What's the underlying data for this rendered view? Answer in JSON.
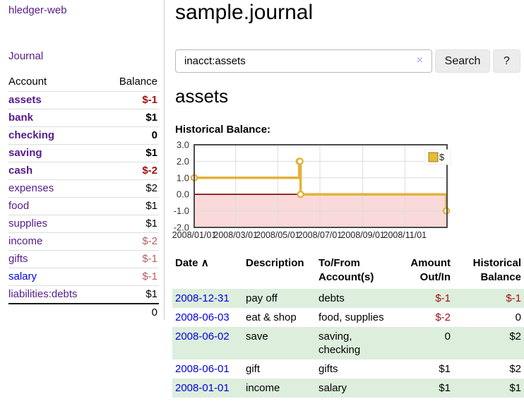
{
  "app": {
    "brand": "hledger-web",
    "nav": {
      "journal": "Journal"
    }
  },
  "sidebar": {
    "headers": {
      "account": "Account",
      "balance": "Balance"
    },
    "accounts": [
      {
        "name": "assets",
        "balance": "$-1",
        "depth": 1,
        "matched": true,
        "tone": "strong"
      },
      {
        "name": "bank",
        "balance": "$1",
        "depth": 2,
        "matched": true
      },
      {
        "name": "checking",
        "balance": "0",
        "depth": 3,
        "matched": true
      },
      {
        "name": "saving",
        "balance": "$1",
        "depth": 3,
        "matched": true
      },
      {
        "name": "cash",
        "balance": "$-2",
        "depth": 2,
        "matched": true,
        "tone": "strong"
      },
      {
        "name": "expenses",
        "balance": "$2",
        "depth": 1,
        "matched": false
      },
      {
        "name": "food",
        "balance": "$1",
        "depth": 2,
        "matched": false
      },
      {
        "name": "supplies",
        "balance": "$1",
        "depth": 2,
        "matched": false
      },
      {
        "name": "income",
        "balance": "$-2",
        "depth": 1,
        "matched": false,
        "tone": "muted"
      },
      {
        "name": "gifts",
        "balance": "$-1",
        "depth": 2,
        "matched": false,
        "tone": "muted"
      },
      {
        "name": "salary",
        "balance": "$-1",
        "depth": 2,
        "matched": false,
        "tone": "muted",
        "visited": false
      },
      {
        "name": "liabilities:debts",
        "balance": "$1",
        "depth": 1,
        "matched": false
      }
    ],
    "total": "0"
  },
  "main": {
    "title": "sample.journal",
    "search": {
      "value": "inacct:assets",
      "clear_icon": "×",
      "search_button": "Search",
      "help_button": "?"
    },
    "heading": "assets",
    "chart_title": "Historical Balance:"
  },
  "chart_data": {
    "type": "line",
    "title": "Historical Balance",
    "series": [
      {
        "name": "$",
        "step": true,
        "points": [
          [
            "2008-01-01",
            1
          ],
          [
            "2008-06-01",
            2
          ],
          [
            "2008-06-02",
            2
          ],
          [
            "2008-06-03",
            0
          ],
          [
            "2008-12-31",
            -1
          ]
        ]
      }
    ],
    "xlim": [
      "2008-01-01",
      "2009-01-01"
    ],
    "ylim": [
      -2,
      3
    ],
    "yticks": [
      "3.0",
      "2.0",
      "1.0",
      "0.0",
      "-1.0",
      "-2.0"
    ],
    "xticks": [
      "2008/01/01",
      "2008/03/01",
      "2008/05/01",
      "2008/07/01",
      "2008/09/01",
      "2008/11/01"
    ],
    "legend": {
      "label": "$",
      "position": "top-right"
    },
    "grid": true,
    "colors": {
      "line": "#e3b23a",
      "legend_swatch": "#e8bb35",
      "legend_swatch_border": "#9a7b22",
      "marker_fill": "#ffffff",
      "negative_region": "#f9d9d9",
      "zero_line": "#7d0000",
      "gridline": "#dcdcdc",
      "border": "#4c4c4c",
      "axis_text": "#333333"
    }
  },
  "register": {
    "headers": {
      "date": "Date",
      "sort_icon": "∧",
      "description": "Description",
      "accounts": "To/From Account(s)",
      "amount": "Amount Out/In",
      "balance": "Historical Balance"
    },
    "rows": [
      {
        "date": "2008-12-31",
        "description": "pay off",
        "accounts": "debts",
        "amount": "$-1",
        "balance": "$-1"
      },
      {
        "date": "2008-06-03",
        "description": "eat & shop",
        "accounts": "food, supplies",
        "amount": "$-2",
        "balance": "0"
      },
      {
        "date": "2008-06-02",
        "description": "save",
        "accounts": "saving, checking",
        "amount": "0",
        "balance": "$2"
      },
      {
        "date": "2008-06-01",
        "description": "gift",
        "accounts": "gifts",
        "amount": "$1",
        "balance": "$2"
      },
      {
        "date": "2008-01-01",
        "description": "income",
        "accounts": "salary",
        "amount": "$1",
        "balance": "$1"
      }
    ]
  },
  "colors": {
    "link_visited": "#551a8b",
    "link_unvisited": "#0000e0",
    "negative_strong": "#a01010",
    "negative_muted": "#b06060",
    "row_highlight_green": "#ddeedd"
  }
}
